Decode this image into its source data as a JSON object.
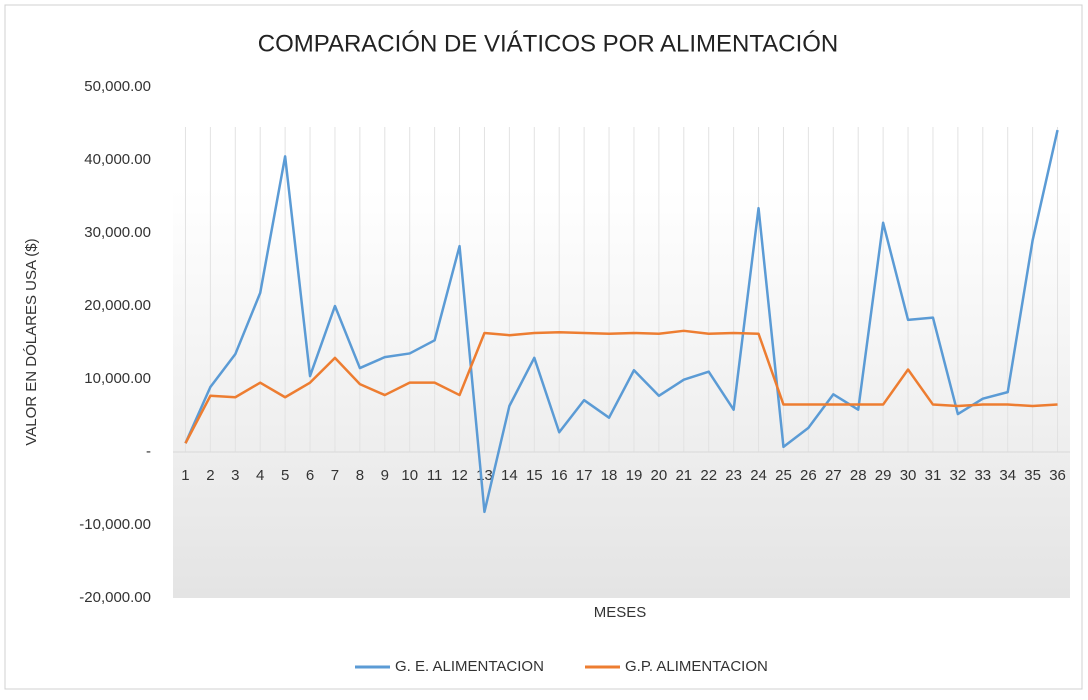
{
  "chart_data": {
    "type": "line",
    "title": "COMPARACIÓN  DE VIÁTICOS  POR ALIMENTACIÓN",
    "x_label": "MESES",
    "y_label": "VALOR EN DÓLARES USA ($)",
    "categories": [
      "1",
      "2",
      "3",
      "4",
      "5",
      "6",
      "7",
      "8",
      "9",
      "10",
      "11",
      "12",
      "13",
      "14",
      "15",
      "16",
      "17",
      "18",
      "19",
      "20",
      "21",
      "22",
      "23",
      "24",
      "25",
      "26",
      "27",
      "28",
      "29",
      "30",
      "31",
      "32",
      "33",
      "34",
      "35",
      "36"
    ],
    "series": [
      {
        "name": "G. E. ALIMENTACION",
        "color": "#5b9bd5",
        "values": [
          1200,
          8900,
          13400,
          21800,
          40500,
          10400,
          20000,
          11500,
          13000,
          13500,
          15300,
          28200,
          -8200,
          6300,
          12900,
          2700,
          7100,
          4700,
          11200,
          7700,
          9900,
          11000,
          5800,
          33400,
          700,
          3300,
          7900,
          5800,
          31400,
          18100,
          18400,
          5200,
          7300,
          8200,
          29000,
          44100
        ]
      },
      {
        "name": "G.P. ALIMENTACION",
        "color": "#ed7d31",
        "values": [
          1200,
          7700,
          7500,
          9500,
          7500,
          9500,
          12900,
          9300,
          7800,
          9500,
          9500,
          7800,
          16300,
          16000,
          16300,
          16400,
          16300,
          16200,
          16300,
          16200,
          16600,
          16200,
          16300,
          16200,
          6500,
          6500,
          6500,
          6500,
          6500,
          11300,
          6500,
          6300,
          6500,
          6500,
          6300,
          6500
        ]
      }
    ],
    "ylim": [
      -20000,
      50000
    ],
    "yticks": [
      {
        "value": -20000,
        "label": "-20,000.00"
      },
      {
        "value": -10000,
        "label": "-10,000.00"
      },
      {
        "value": 0,
        "label": "-"
      },
      {
        "value": 10000,
        "label": "10,000.00"
      },
      {
        "value": 20000,
        "label": "20,000.00"
      },
      {
        "value": 30000,
        "label": "30,000.00"
      },
      {
        "value": 40000,
        "label": "40,000.00"
      },
      {
        "value": 50000,
        "label": "50,000.00"
      }
    ],
    "grid": true,
    "legend": "bottom"
  }
}
